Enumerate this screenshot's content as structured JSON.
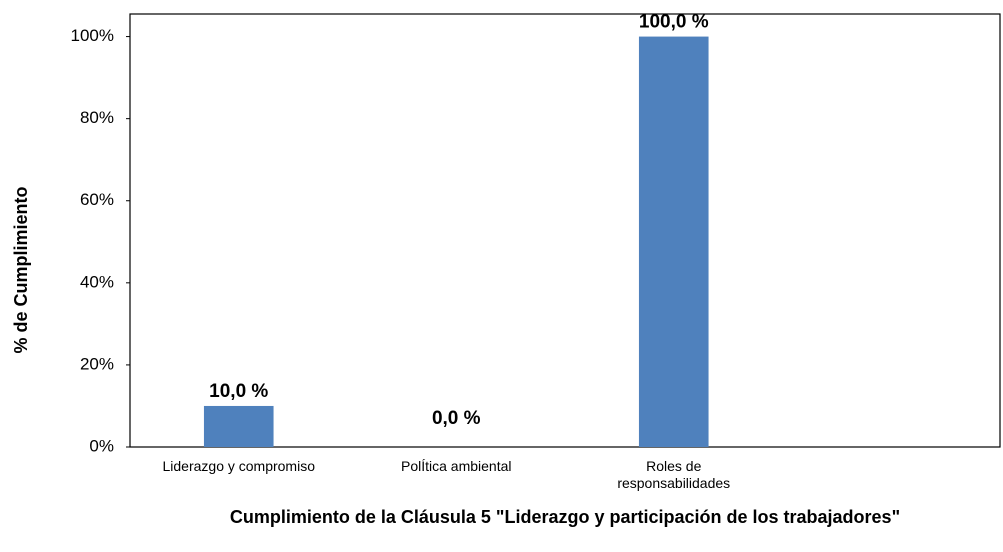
{
  "chart_data": {
    "type": "bar",
    "title": "Cumplimiento de la Cláusula 5 \"Liderazgo y participación de los trabajadores\"",
    "y_axis_label": "% de Cumplimiento",
    "categories": [
      "Liderazgo y compromiso",
      "PolÍtica ambiental",
      "Roles de responsabilidades",
      null
    ],
    "values": [
      10,
      0,
      100,
      null
    ],
    "value_labels": [
      "10,0 %",
      "0,0 %",
      "100,0 %",
      null
    ],
    "color": "#4f81bd",
    "ylim": [
      0,
      105.5
    ],
    "yticks": [
      {
        "value": 0,
        "label": "0%"
      },
      {
        "value": 20,
        "label": "20%"
      },
      {
        "value": 40,
        "label": "40%"
      },
      {
        "value": 60,
        "label": "60%"
      },
      {
        "value": 80,
        "label": "80%"
      },
      {
        "value": 100,
        "label": "100%"
      }
    ],
    "grid": false
  }
}
